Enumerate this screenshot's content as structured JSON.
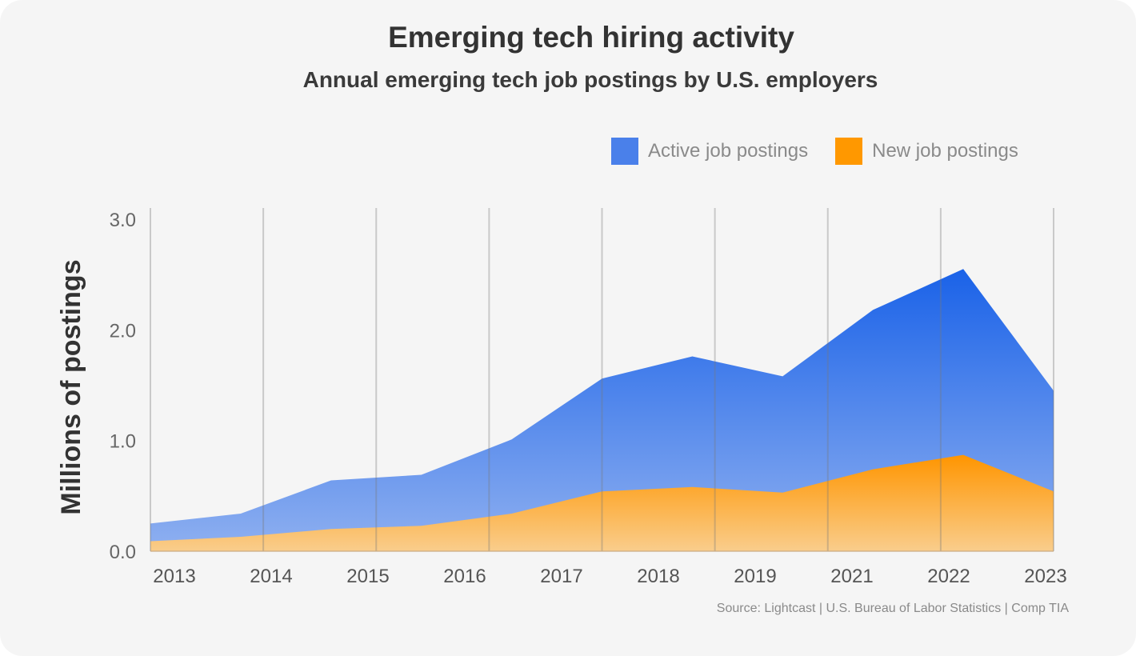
{
  "chart_data": {
    "type": "area",
    "title": "Emerging tech hiring activity",
    "subtitle": "Annual emerging tech job postings by U.S. employers",
    "ylabel": "Millions of postings",
    "xlabel": "",
    "ylim": [
      0,
      3.0
    ],
    "y_ticks": [
      "0.0",
      "1.0",
      "2.0",
      "3.0"
    ],
    "x_tick_labels": [
      "2013",
      "2014",
      "2015",
      "2016",
      "2017",
      "2018",
      "2019",
      "2021",
      "2022",
      "2023"
    ],
    "grid": "vertical",
    "legend_position": "top-right",
    "series": [
      {
        "name": "Active job postings",
        "color": "#1a66e8",
        "values": [
          0.25,
          0.34,
          0.64,
          0.69,
          1.01,
          1.56,
          1.76,
          1.58,
          2.18,
          2.55,
          1.45
        ]
      },
      {
        "name": "New job postings",
        "color": "#ff9800",
        "values": [
          0.09,
          0.13,
          0.2,
          0.23,
          0.34,
          0.54,
          0.58,
          0.53,
          0.74,
          0.87,
          0.54
        ]
      }
    ],
    "source": "Source: Lightcast | U.S. Bureau of Labor Statistics | Comp TIA"
  }
}
